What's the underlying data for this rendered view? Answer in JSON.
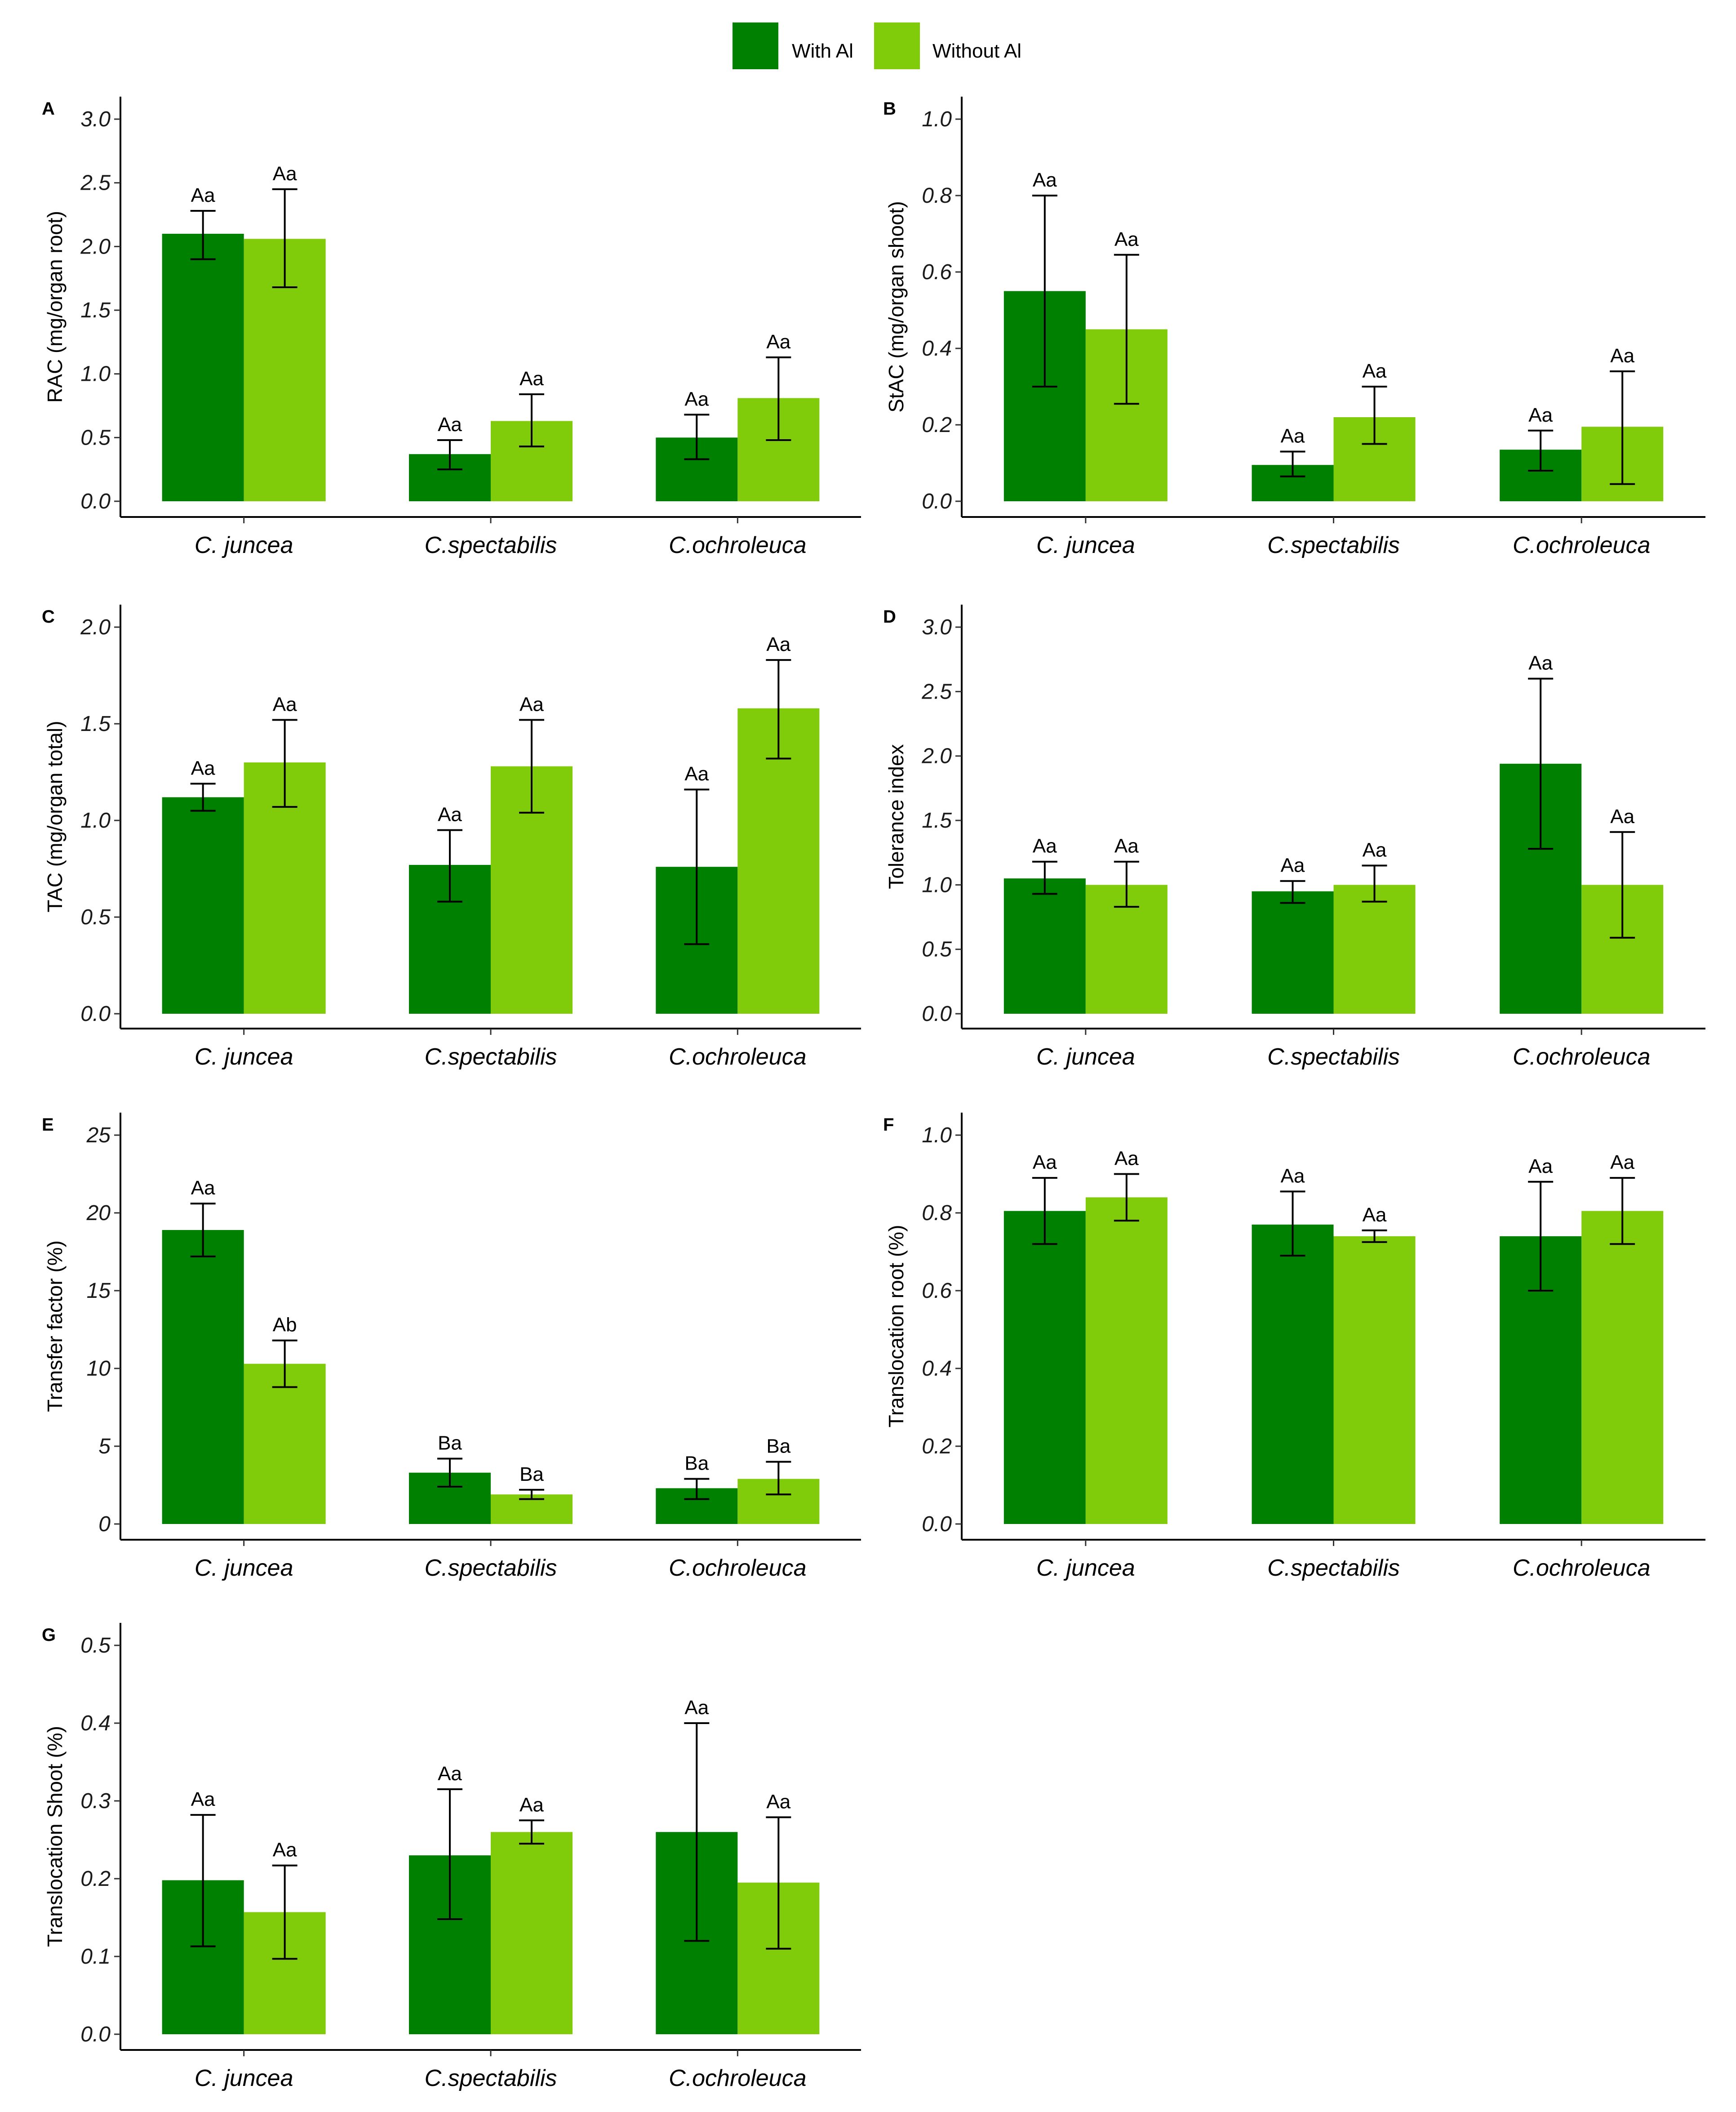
{
  "colors": {
    "with_al": "#008000",
    "without_al": "#80cc0a"
  },
  "legend": [
    {
      "label": "With Al",
      "color": "#008000"
    },
    {
      "label": "Without Al",
      "color": "#80cc0a"
    }
  ],
  "chart_data": [
    {
      "type": "bar",
      "panel": "A",
      "ylabel": "RAC (mg/organ root)",
      "categories": [
        "C. juncea",
        "C.spectabilis",
        "C.ochroleuca"
      ],
      "ylim": [
        0,
        3.0
      ],
      "yticks": [
        "0.0",
        "0.5",
        "1.0",
        "1.5",
        "2.0",
        "2.5",
        "3.0"
      ],
      "series": [
        {
          "name": "With Al",
          "values": [
            2.1,
            0.37,
            0.5
          ],
          "err_low": [
            1.9,
            0.25,
            0.33
          ],
          "err_high": [
            2.28,
            0.48,
            0.68
          ],
          "labels": [
            "Aa",
            "Aa",
            "Aa"
          ]
        },
        {
          "name": "Without Al",
          "values": [
            2.06,
            0.63,
            0.81
          ],
          "err_low": [
            1.68,
            0.43,
            0.48
          ],
          "err_high": [
            2.45,
            0.84,
            1.13
          ],
          "labels": [
            "Aa",
            "Aa",
            "Aa"
          ]
        }
      ]
    },
    {
      "type": "bar",
      "panel": "B",
      "ylabel": "StAC (mg/organ shoot)",
      "categories": [
        "C. juncea",
        "C.spectabilis",
        "C.ochroleuca"
      ],
      "ylim": [
        0,
        1.0
      ],
      "yticks": [
        "0.0",
        "0.2",
        "0.4",
        "0.6",
        "0.8",
        "1.0"
      ],
      "series": [
        {
          "name": "With Al",
          "values": [
            0.55,
            0.095,
            0.135
          ],
          "err_low": [
            0.3,
            0.065,
            0.08
          ],
          "err_high": [
            0.8,
            0.13,
            0.185
          ],
          "labels": [
            "Aa",
            "Aa",
            "Aa"
          ]
        },
        {
          "name": "Without Al",
          "values": [
            0.45,
            0.22,
            0.195
          ],
          "err_low": [
            0.255,
            0.15,
            0.045
          ],
          "err_high": [
            0.645,
            0.3,
            0.34
          ],
          "labels": [
            "Aa",
            "Aa",
            "Aa"
          ]
        }
      ]
    },
    {
      "type": "bar",
      "panel": "C",
      "ylabel": "TAC (mg/organ total)",
      "categories": [
        "C. juncea",
        "C.spectabilis",
        "C.ochroleuca"
      ],
      "ylim": [
        0,
        2.0
      ],
      "yticks": [
        "0.0",
        "0.5",
        "1.0",
        "1.5",
        "2.0"
      ],
      "series": [
        {
          "name": "With Al",
          "values": [
            1.12,
            0.77,
            0.76
          ],
          "err_low": [
            1.05,
            0.58,
            0.36
          ],
          "err_high": [
            1.19,
            0.95,
            1.16
          ],
          "labels": [
            "Aa",
            "Aa",
            "Aa"
          ]
        },
        {
          "name": "Without Al",
          "values": [
            1.3,
            1.28,
            1.58
          ],
          "err_low": [
            1.07,
            1.04,
            1.32
          ],
          "err_high": [
            1.52,
            1.52,
            1.83
          ],
          "labels": [
            "Aa",
            "Aa",
            "Aa"
          ]
        }
      ]
    },
    {
      "type": "bar",
      "panel": "D",
      "ylabel": "Tolerance index",
      "categories": [
        "C. juncea",
        "C.spectabilis",
        "C.ochroleuca"
      ],
      "ylim": [
        0,
        3.0
      ],
      "yticks": [
        "0.0",
        "0.5",
        "1.0",
        "1.5",
        "2.0",
        "2.5",
        "3.0"
      ],
      "series": [
        {
          "name": "With Al",
          "values": [
            1.05,
            0.95,
            1.94
          ],
          "err_low": [
            0.93,
            0.86,
            1.28
          ],
          "err_high": [
            1.18,
            1.03,
            2.6
          ],
          "labels": [
            "Aa",
            "Aa",
            "Aa"
          ]
        },
        {
          "name": "Without Al",
          "values": [
            1.0,
            1.0,
            1.0
          ],
          "err_low": [
            0.83,
            0.87,
            0.59
          ],
          "err_high": [
            1.18,
            1.15,
            1.41
          ],
          "labels": [
            "Aa",
            "Aa",
            "Aa"
          ]
        }
      ]
    },
    {
      "type": "bar",
      "panel": "E",
      "ylabel": "Transfer factor (%)",
      "categories": [
        "C. juncea",
        "C.spectabilis",
        "C.ochroleuca"
      ],
      "ylim": [
        0,
        25
      ],
      "yticks": [
        "0",
        "5",
        "10",
        "15",
        "20",
        "25"
      ],
      "series": [
        {
          "name": "With Al",
          "values": [
            18.9,
            3.3,
            2.3
          ],
          "err_low": [
            17.2,
            2.4,
            1.6
          ],
          "err_high": [
            20.6,
            4.2,
            2.9
          ],
          "labels": [
            "Aa",
            "Ba",
            "Ba"
          ]
        },
        {
          "name": "Without Al",
          "values": [
            10.3,
            1.9,
            2.9
          ],
          "err_low": [
            8.8,
            1.6,
            1.9
          ],
          "err_high": [
            11.8,
            2.2,
            4.0
          ],
          "labels": [
            "Ab",
            "Ba",
            "Ba"
          ]
        }
      ]
    },
    {
      "type": "bar",
      "panel": "F",
      "ylabel": "Translocation root (%)",
      "categories": [
        "C. juncea",
        "C.spectabilis",
        "C.ochroleuca"
      ],
      "ylim": [
        0,
        1.0
      ],
      "yticks": [
        "0.0",
        "0.2",
        "0.4",
        "0.6",
        "0.8",
        "1.0"
      ],
      "series": [
        {
          "name": "With Al",
          "values": [
            0.805,
            0.77,
            0.74
          ],
          "err_low": [
            0.72,
            0.69,
            0.6
          ],
          "err_high": [
            0.89,
            0.855,
            0.88
          ],
          "labels": [
            "Aa",
            "Aa",
            "Aa"
          ]
        },
        {
          "name": "Without Al",
          "values": [
            0.84,
            0.74,
            0.805
          ],
          "err_low": [
            0.78,
            0.725,
            0.72
          ],
          "err_high": [
            0.9,
            0.755,
            0.89
          ],
          "labels": [
            "Aa",
            "Aa",
            "Aa"
          ]
        }
      ]
    },
    {
      "type": "bar",
      "panel": "G",
      "ylabel": "Translocation Shoot (%)",
      "categories": [
        "C. juncea",
        "C.spectabilis",
        "C.ochroleuca"
      ],
      "ylim": [
        0,
        0.5
      ],
      "yticks": [
        "0.0",
        "0.1",
        "0.2",
        "0.3",
        "0.4",
        "0.5"
      ],
      "series": [
        {
          "name": "With Al",
          "values": [
            0.198,
            0.23,
            0.26
          ],
          "err_low": [
            0.113,
            0.148,
            0.12
          ],
          "err_high": [
            0.282,
            0.315,
            0.4
          ],
          "labels": [
            "Aa",
            "Aa",
            "Aa"
          ]
        },
        {
          "name": "Without Al",
          "values": [
            0.157,
            0.26,
            0.195
          ],
          "err_low": [
            0.097,
            0.245,
            0.11
          ],
          "err_high": [
            0.217,
            0.275,
            0.279
          ],
          "labels": [
            "Aa",
            "Aa",
            "Aa"
          ]
        }
      ]
    }
  ]
}
